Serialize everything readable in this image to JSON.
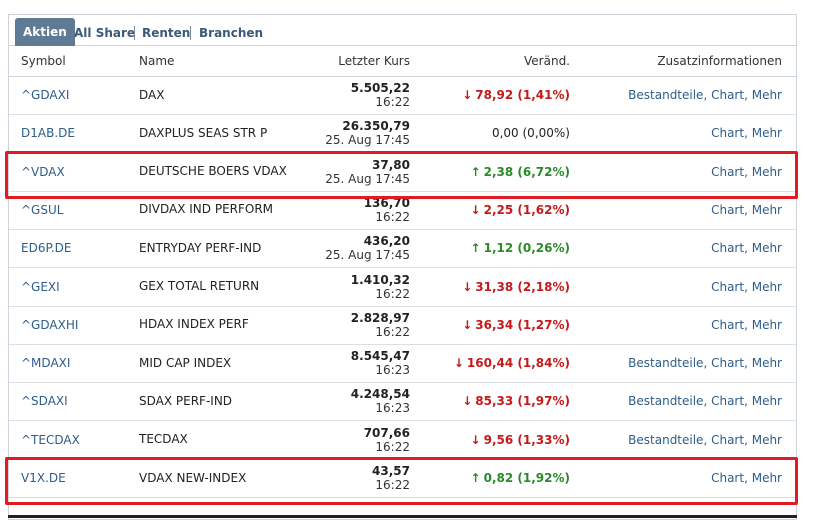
{
  "tabs": [
    "Aktien",
    "All Share",
    "Renten",
    "Branchen"
  ],
  "columns": {
    "symbol": "Symbol",
    "name": "Name",
    "kurs": "Letzter Kurs",
    "change": "Veränd.",
    "info": "Zusatzinformationen"
  },
  "info_labels": {
    "bestandteile": "Bestandteile",
    "chart": "Chart",
    "mehr": "Mehr",
    "sep": ", "
  },
  "colors": {
    "down": "#c41a1a",
    "up": "#2a8a2a",
    "link": "#2d5d8a",
    "highlight": "#e01b24"
  },
  "rows": [
    {
      "symbol": "^GDAXI",
      "name": "DAX",
      "price": "5.505,22",
      "time": "16:22",
      "dir": "down",
      "change": "78,92 (1,41%)",
      "bestandteile": true,
      "highlight": false
    },
    {
      "symbol": "D1AB.DE",
      "name": "DAXPLUS SEAS STR P",
      "price": "26.350,79",
      "time": "25. Aug 17:45",
      "dir": "flat",
      "change": "0,00 (0,00%)",
      "bestandteile": false,
      "highlight": false
    },
    {
      "symbol": "^VDAX",
      "name": "DEUTSCHE BOERS VDAX",
      "price": "37,80",
      "time": "25. Aug 17:45",
      "dir": "up",
      "change": "2,38 (6,72%)",
      "bestandteile": false,
      "highlight": true
    },
    {
      "symbol": "^GSUL",
      "name": "DIVDAX IND PERFORM",
      "price": "136,70",
      "time": "16:22",
      "dir": "down",
      "change": "2,25 (1,62%)",
      "bestandteile": false,
      "highlight": false
    },
    {
      "symbol": "ED6P.DE",
      "name": "ENTRYDAY PERF-IND",
      "price": "436,20",
      "time": "25. Aug 17:45",
      "dir": "up",
      "change": "1,12 (0,26%)",
      "bestandteile": false,
      "highlight": false
    },
    {
      "symbol": "^GEXI",
      "name": "GEX TOTAL RETURN",
      "price": "1.410,32",
      "time": "16:22",
      "dir": "down",
      "change": "31,38 (2,18%)",
      "bestandteile": false,
      "highlight": false
    },
    {
      "symbol": "^GDAXHI",
      "name": "HDAX INDEX PERF",
      "price": "2.828,97",
      "time": "16:22",
      "dir": "down",
      "change": "36,34 (1,27%)",
      "bestandteile": false,
      "highlight": false
    },
    {
      "symbol": "^MDAXI",
      "name": "MID CAP INDEX",
      "price": "8.545,47",
      "time": "16:23",
      "dir": "down",
      "change": "160,44 (1,84%)",
      "bestandteile": true,
      "highlight": false
    },
    {
      "symbol": "^SDAXI",
      "name": "SDAX PERF-IND",
      "price": "4.248,54",
      "time": "16:23",
      "dir": "down",
      "change": "85,33 (1,97%)",
      "bestandteile": true,
      "highlight": false
    },
    {
      "symbol": "^TECDAX",
      "name": "TECDAX",
      "price": "707,66",
      "time": "16:22",
      "dir": "down",
      "change": "9,56 (1,33%)",
      "bestandteile": true,
      "highlight": false
    },
    {
      "symbol": "V1X.DE",
      "name": "VDAX NEW-INDEX",
      "price": "43,57",
      "time": "16:22",
      "dir": "up",
      "change": "0,82 (1,92%)",
      "bestandteile": false,
      "highlight": true
    }
  ]
}
